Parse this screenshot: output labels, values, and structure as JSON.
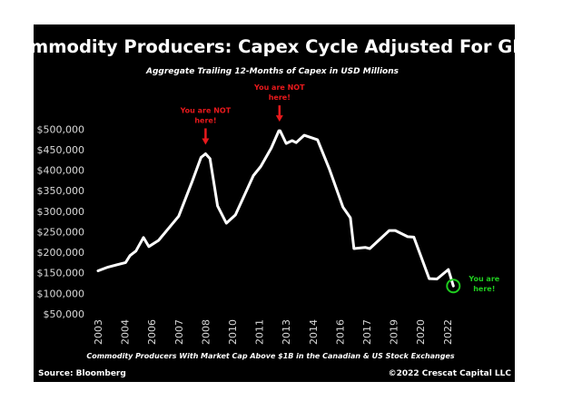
{
  "chart_data": {
    "type": "line",
    "title": "Commodity Producers: Capex Cycle Adjusted For GDP",
    "subtitle": "Aggregate Trailing 12-Months of Capex in USD Millions",
    "xlabel": "Commodity Producers With Market Cap Above $1B in the Canadian & US Stock Exchanges",
    "ylabel": "",
    "source": "Source: Bloomberg",
    "copyright": "©2022 Crescat Capital LLC",
    "x_tick_labels": [
      "2003",
      "2004",
      "2006",
      "2007",
      "2008",
      "2010",
      "2011",
      "2013",
      "2014",
      "2016",
      "2017",
      "2019",
      "2020",
      "2022"
    ],
    "y_tick_labels": [
      "$500,000",
      "$450,000",
      "$400,000",
      "$350,000",
      "$300,000",
      "$250,000",
      "$200,000",
      "$150,000",
      "$100,000",
      "$50,000"
    ],
    "y_ticks": [
      500000,
      450000,
      400000,
      350000,
      300000,
      250000,
      200000,
      150000,
      100000,
      50000
    ],
    "ylim": [
      50000,
      500000
    ],
    "grid": false,
    "legend": "none",
    "colors": {
      "background": "#000000",
      "line": "#ffffff",
      "annotation_red": "#e8191c",
      "annotation_green": "#1fcc1f",
      "text": "#ffffff",
      "tick_text": "#d9d9d9"
    },
    "series": [
      {
        "x": [
          2003.0,
          2003.37,
          2004.05,
          2004.38,
          2004.82,
          2005.38,
          2005.78,
          2006.25,
          2007.0,
          2007.5,
          2007.83,
          2008.0,
          2008.33,
          2008.89,
          2009.55,
          2010.11,
          2010.78,
          2011.11,
          2011.89,
          2012.45,
          2012.55,
          2013.0,
          2013.22,
          2013.37,
          2013.67,
          2014.33,
          2015.22,
          2016.11,
          2016.39,
          2016.52,
          2016.94,
          2017.22,
          2018.67,
          2019.06,
          2019.52,
          2019.75,
          2020.64,
          2021.22,
          2022.07,
          2022.44
        ],
        "y": [
          155000,
          164000,
          175000,
          192000,
          203000,
          236000,
          214000,
          229000,
          288000,
          372000,
          431000,
          440000,
          428000,
          313000,
          271000,
          291000,
          387000,
          409000,
          454000,
          496000,
          496000,
          465000,
          472000,
          467000,
          485000,
          474000,
          402000,
          310000,
          284000,
          209000,
          212000,
          209000,
          253000,
          253000,
          238000,
          237000,
          136000,
          135000,
          158000,
          118000
        ]
      }
    ],
    "annotations": [
      {
        "text_line1": "You are NOT",
        "text_line2": "here!",
        "x": 2008.0,
        "y": 440000,
        "color": "red",
        "marker": "down-arrow"
      },
      {
        "text_line1": "You are NOT",
        "text_line2": "here!",
        "x": 2012.5,
        "y": 496000,
        "color": "red",
        "marker": "down-arrow"
      },
      {
        "text_line1": "You are",
        "text_line2": "here!",
        "x": 2022.44,
        "y": 118000,
        "color": "green",
        "marker": "circle"
      }
    ]
  }
}
